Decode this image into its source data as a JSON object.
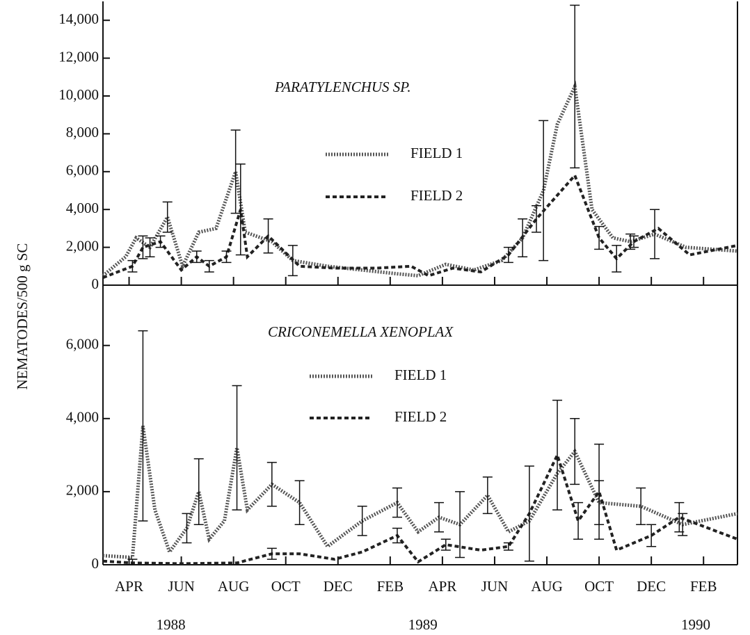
{
  "y_label": "NEMATODES/500 g SC",
  "chart_data": [
    {
      "type": "line",
      "title": "PARATYLENCHUS  SP.",
      "xlim": [
        2,
        26.3
      ],
      "ylim": [
        0,
        15000
      ],
      "xticks": [
        3,
        5,
        7,
        9,
        11,
        13,
        15,
        17,
        19,
        21,
        23,
        25
      ],
      "yticks": [
        0,
        {
          "value": 2000,
          "label": "2,000"
        },
        {
          "value": 4000,
          "label": "4,000"
        },
        {
          "value": 6000,
          "label": "6,000"
        },
        {
          "value": 8000,
          "label": "8,000"
        },
        {
          "value": 10000,
          "label": "10,000"
        },
        {
          "value": 12000,
          "label": "12,000"
        },
        {
          "value": 14000,
          "label": "14,000"
        }
      ],
      "series": [
        {
          "name": "FIELD 1",
          "color": "#555555",
          "style": "dotted",
          "x": [
            2.0,
            2.87,
            3.27,
            3.8,
            4.47,
            5.05,
            5.67,
            6.33,
            7.08,
            7.45,
            8.47,
            9.27,
            10.6,
            11.93,
            13.27,
            14.07,
            15.13,
            16.2,
            17.27,
            18.07,
            18.87,
            19.4,
            20.07,
            20.73,
            21.53,
            22.2,
            23.13,
            24.33,
            26.3
          ],
          "values": [
            500,
            1500,
            2500,
            2000,
            3600,
            1000,
            2800,
            3000,
            6000,
            2800,
            2300,
            1300,
            1000,
            800,
            600,
            500,
            1100,
            800,
            1300,
            2500,
            5000,
            8500,
            10500,
            4000,
            2500,
            2300,
            2700,
            2000,
            1800
          ],
          "errors": [
            null,
            null,
            null,
            500,
            800,
            null,
            null,
            null,
            2200,
            null,
            null,
            800,
            null,
            null,
            null,
            null,
            null,
            null,
            null,
            1000,
            3700,
            null,
            4300,
            null,
            null,
            400,
            1300,
            null,
            null
          ]
        },
        {
          "name": "FIELD 2",
          "color": "#222222",
          "style": "dashed",
          "x": [
            2.0,
            3.13,
            3.53,
            4.2,
            5.0,
            5.59,
            6.07,
            6.73,
            7.27,
            7.53,
            8.33,
            9.53,
            10.87,
            12.47,
            13.8,
            14.47,
            15.4,
            16.47,
            17.53,
            18.6,
            20.07,
            21.0,
            21.67,
            22.33,
            23.27,
            24.47,
            26.3
          ],
          "values": [
            400,
            1000,
            2000,
            2300,
            800,
            1500,
            1000,
            1500,
            4000,
            1500,
            2600,
            1000,
            900,
            900,
            1000,
            500,
            900,
            700,
            1600,
            3500,
            5800,
            2500,
            1400,
            2300,
            3000,
            1600,
            2100
          ],
          "errors": [
            null,
            300,
            600,
            300,
            null,
            300,
            300,
            300,
            2400,
            null,
            900,
            null,
            null,
            null,
            null,
            null,
            null,
            null,
            400,
            700,
            null,
            600,
            700,
            300,
            null,
            null,
            null
          ]
        }
      ]
    },
    {
      "type": "line",
      "title": "CRICONEMELLA XENOPLAX",
      "xlim": [
        2,
        26.3
      ],
      "ylim": [
        0,
        7650
      ],
      "xticks": [
        {
          "value": 3,
          "label": "APR"
        },
        {
          "value": 5,
          "label": "JUN"
        },
        {
          "value": 7,
          "label": "AUG"
        },
        {
          "value": 9,
          "label": "OCT"
        },
        {
          "value": 11,
          "label": "DEC"
        },
        {
          "value": 13,
          "label": "FEB"
        },
        {
          "value": 15,
          "label": "APR"
        },
        {
          "value": 17,
          "label": "JUN"
        },
        {
          "value": 19,
          "label": "AUG"
        },
        {
          "value": 21,
          "label": "OCT"
        },
        {
          "value": 23,
          "label": "DEC"
        },
        {
          "value": 25,
          "label": "FEB"
        }
      ],
      "year_labels": [
        {
          "value": 4.6,
          "label": "1988"
        },
        {
          "value": 14.25,
          "label": "1989"
        },
        {
          "value": 24.7,
          "label": "1990"
        }
      ],
      "yticks": [
        0,
        {
          "value": 2000,
          "label": "2,000"
        },
        {
          "value": 4000,
          "label": "4,000"
        },
        {
          "value": 6000,
          "label": "6,000"
        }
      ],
      "series": [
        {
          "name": "FIELD 1",
          "color": "#555555",
          "style": "dotted",
          "x": [
            2.0,
            3.13,
            3.53,
            3.99,
            4.55,
            5.21,
            5.67,
            6.07,
            6.65,
            7.13,
            7.53,
            8.47,
            9.53,
            10.6,
            11.93,
            13.27,
            14.07,
            14.87,
            15.67,
            16.73,
            17.53,
            18.33,
            19.4,
            20.07,
            21.0,
            22.6,
            24.2,
            26.3
          ],
          "values": [
            250,
            200,
            3800,
            1500,
            350,
            1000,
            2000,
            700,
            1200,
            3200,
            1500,
            2200,
            1700,
            500,
            1200,
            1700,
            900,
            1300,
            1100,
            1900,
            900,
            1200,
            2500,
            3100,
            1700,
            1600,
            1100,
            1400
          ],
          "errors": [
            null,
            null,
            2600,
            null,
            null,
            400,
            900,
            null,
            null,
            1700,
            null,
            600,
            600,
            null,
            400,
            400,
            null,
            400,
            900,
            500,
            null,
            null,
            null,
            900,
            600,
            500,
            300,
            null
          ]
        },
        {
          "name": "FIELD 2",
          "color": "#222222",
          "style": "dashed",
          "x": [
            2.0,
            3.13,
            5.0,
            7.13,
            8.47,
            9.53,
            10.87,
            11.93,
            13.27,
            14.07,
            15.13,
            16.47,
            17.53,
            18.33,
            19.4,
            20.2,
            21.0,
            21.67,
            23.0,
            24.07,
            26.3
          ],
          "values": [
            100,
            50,
            30,
            50,
            300,
            300,
            150,
            350,
            800,
            80,
            550,
            400,
            500,
            1400,
            3000,
            1200,
            2000,
            400,
            800,
            1300,
            700
          ],
          "errors": [
            null,
            100,
            null,
            null,
            150,
            null,
            null,
            null,
            200,
            null,
            150,
            null,
            100,
            1300,
            1500,
            500,
            1300,
            null,
            300,
            400,
            null
          ]
        }
      ]
    }
  ]
}
